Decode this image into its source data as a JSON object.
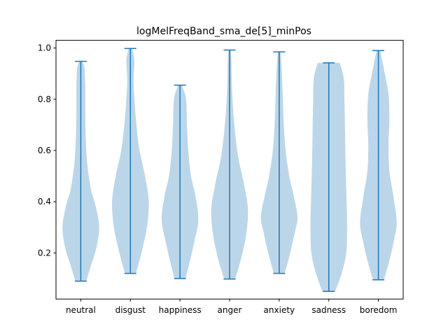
{
  "chart_data": {
    "type": "violin",
    "title": "logMelFreqBand_sma_de[5]_minPos",
    "xlabel": "",
    "ylabel": "",
    "ylim": [
      0.02,
      1.03
    ],
    "yticks": [
      0.2,
      0.4,
      0.6,
      0.8,
      1.0
    ],
    "ytick_labels": [
      "0.2",
      "0.4",
      "0.6",
      "0.8",
      "1.0"
    ],
    "categories": [
      "neutral",
      "disgust",
      "happiness",
      "anger",
      "anxiety",
      "sadness",
      "boredom"
    ],
    "series": [
      {
        "min": 0.09,
        "max": 0.948,
        "density": [
          [
            0.09,
            0.3
          ],
          [
            0.15,
            0.55
          ],
          [
            0.22,
            0.85
          ],
          [
            0.3,
            1.0
          ],
          [
            0.38,
            0.82
          ],
          [
            0.45,
            0.55
          ],
          [
            0.55,
            0.35
          ],
          [
            0.65,
            0.27
          ],
          [
            0.75,
            0.24
          ],
          [
            0.85,
            0.24
          ],
          [
            0.92,
            0.2
          ],
          [
            0.948,
            0.08
          ]
        ]
      },
      {
        "min": 0.12,
        "max": 0.998,
        "density": [
          [
            0.12,
            0.3
          ],
          [
            0.2,
            0.6
          ],
          [
            0.3,
            0.9
          ],
          [
            0.4,
            1.0
          ],
          [
            0.5,
            0.8
          ],
          [
            0.6,
            0.5
          ],
          [
            0.7,
            0.33
          ],
          [
            0.8,
            0.22
          ],
          [
            0.88,
            0.17
          ],
          [
            0.95,
            0.22
          ],
          [
            0.998,
            0.1
          ]
        ]
      },
      {
        "min": 0.1,
        "max": 0.855,
        "density": [
          [
            0.1,
            0.3
          ],
          [
            0.17,
            0.55
          ],
          [
            0.25,
            0.8
          ],
          [
            0.33,
            1.0
          ],
          [
            0.42,
            0.85
          ],
          [
            0.5,
            0.6
          ],
          [
            0.6,
            0.45
          ],
          [
            0.7,
            0.38
          ],
          [
            0.8,
            0.33
          ],
          [
            0.855,
            0.1
          ]
        ]
      },
      {
        "min": 0.098,
        "max": 0.992,
        "density": [
          [
            0.098,
            0.3
          ],
          [
            0.17,
            0.6
          ],
          [
            0.27,
            0.9
          ],
          [
            0.37,
            1.0
          ],
          [
            0.47,
            0.78
          ],
          [
            0.57,
            0.48
          ],
          [
            0.67,
            0.3
          ],
          [
            0.77,
            0.18
          ],
          [
            0.87,
            0.12
          ],
          [
            0.95,
            0.1
          ],
          [
            0.992,
            0.06
          ]
        ]
      },
      {
        "min": 0.12,
        "max": 0.985,
        "density": [
          [
            0.12,
            0.3
          ],
          [
            0.2,
            0.6
          ],
          [
            0.28,
            0.85
          ],
          [
            0.34,
            1.0
          ],
          [
            0.42,
            0.8
          ],
          [
            0.5,
            0.55
          ],
          [
            0.6,
            0.35
          ],
          [
            0.7,
            0.25
          ],
          [
            0.8,
            0.2
          ],
          [
            0.9,
            0.15
          ],
          [
            0.985,
            0.08
          ]
        ]
      },
      {
        "min": 0.05,
        "max": 0.942,
        "density": [
          [
            0.05,
            0.35
          ],
          [
            0.12,
            0.7
          ],
          [
            0.2,
            0.95
          ],
          [
            0.3,
            1.0
          ],
          [
            0.4,
            0.97
          ],
          [
            0.5,
            0.93
          ],
          [
            0.6,
            0.9
          ],
          [
            0.7,
            0.88
          ],
          [
            0.8,
            0.85
          ],
          [
            0.88,
            0.82
          ],
          [
            0.942,
            0.6
          ]
        ]
      },
      {
        "min": 0.095,
        "max": 0.99,
        "density": [
          [
            0.095,
            0.3
          ],
          [
            0.17,
            0.6
          ],
          [
            0.25,
            0.85
          ],
          [
            0.32,
            1.0
          ],
          [
            0.42,
            0.82
          ],
          [
            0.52,
            0.6
          ],
          [
            0.62,
            0.55
          ],
          [
            0.72,
            0.6
          ],
          [
            0.82,
            0.55
          ],
          [
            0.9,
            0.35
          ],
          [
            0.99,
            0.1
          ]
        ]
      }
    ],
    "colors": {
      "body": "#bcd6e9",
      "line": "#1f77b4",
      "axis": "#000000"
    },
    "grid": false,
    "legend": "none"
  }
}
